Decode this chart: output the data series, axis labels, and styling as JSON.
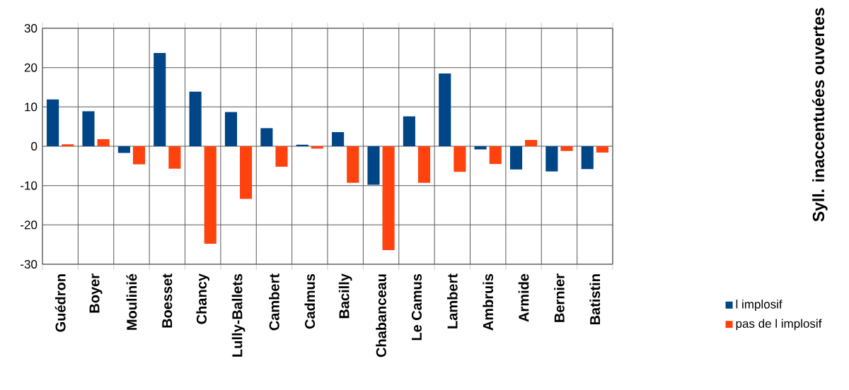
{
  "chart_data": {
    "type": "bar",
    "annotations": [
      "Syll. inaccentuées ouvertes"
    ],
    "categories": [
      "Guédron",
      "Boyer",
      "Moulinié",
      "Boesset",
      "Chancy",
      "Lully-Ballets",
      "Cambert",
      "Cadmus",
      "Bacilly",
      "Chabanceau",
      "Le Camus",
      "Lambert",
      "Ambruis",
      "Armide",
      "Bernier",
      "Batistin"
    ],
    "series": [
      {
        "name": "l implosif",
        "color": "#004586",
        "values": [
          11.9,
          8.9,
          -1.7,
          23.7,
          13.9,
          8.7,
          4.6,
          0.4,
          3.6,
          -9.8,
          7.6,
          18.5,
          -0.8,
          -5.9,
          -6.4,
          -5.8
        ]
      },
      {
        "name": "pas de l implosif",
        "color": "#ff420e",
        "values": [
          0.5,
          1.8,
          -4.6,
          -5.7,
          -24.8,
          -13.4,
          -5.2,
          -0.6,
          -9.3,
          -26.4,
          -9.3,
          -6.5,
          -4.5,
          1.6,
          -1.2,
          -1.6
        ]
      }
    ],
    "ylim": [
      -30,
      30
    ],
    "yticks": [
      -30,
      -20,
      -10,
      0,
      10,
      20,
      30
    ],
    "grid": true,
    "legend": "bottom right"
  }
}
